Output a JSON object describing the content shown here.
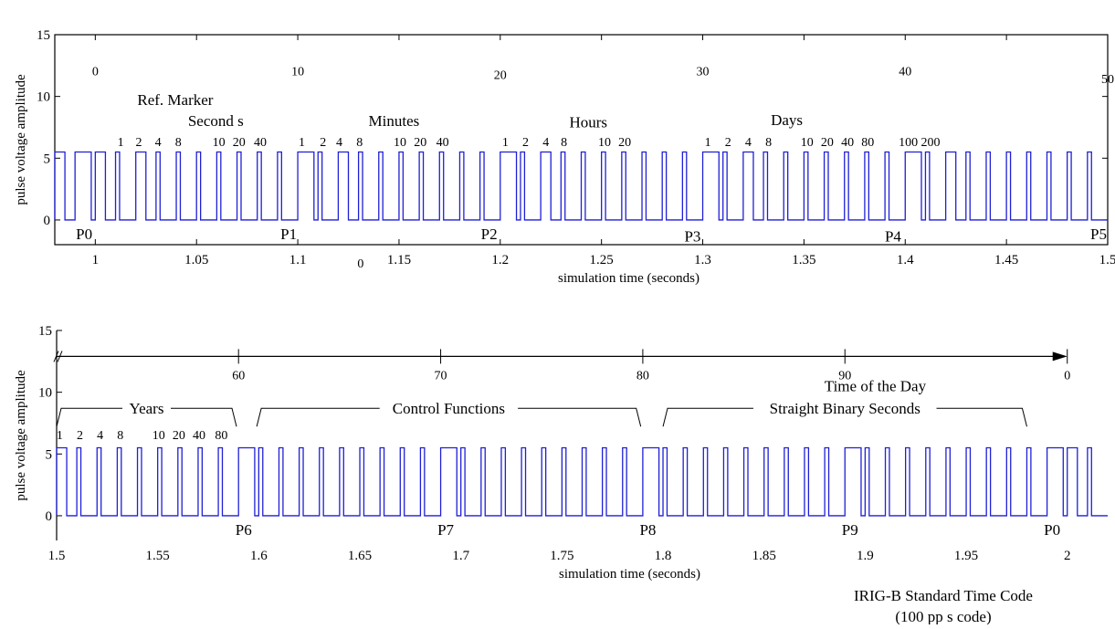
{
  "chart_data": [
    {
      "type": "line",
      "name": "top-panel",
      "xlabel": "simulation time (seconds)",
      "ylabel": "pulse voltage amplitude",
      "xlim": [
        0.98,
        1.5
      ],
      "ylim": [
        -2,
        15
      ],
      "xticks": [
        1,
        1.05,
        1.1,
        1.15,
        1.2,
        1.25,
        1.3,
        1.35,
        1.4,
        1.45,
        1.5
      ],
      "xtick_labels": [
        "1",
        "1.05",
        "1.1",
        "1.15",
        "1.2",
        "1.25",
        "1.3",
        "1.35",
        "1.4",
        "1.45",
        "1.5"
      ],
      "yticks": [
        0,
        5,
        10,
        15
      ],
      "ytick_labels": [
        "0",
        "5",
        "10",
        "15"
      ],
      "pulse_amplitude": 5.5,
      "pulse_start": 0.98,
      "pulse_period": 0.01,
      "pulse_widths": [
        0.005,
        0.008,
        0.005,
        0.002,
        0.005,
        0.002,
        0.002,
        0.002,
        0.002,
        0.002,
        0.002,
        0.002,
        0.008,
        0.002,
        0.005,
        0.002,
        0.002,
        0.002,
        0.002,
        0.002,
        0.002,
        0.002,
        0.008,
        0.002,
        0.005,
        0.002,
        0.002,
        0.002,
        0.002,
        0.002,
        0.002,
        0.002,
        0.008,
        0.002,
        0.005,
        0.002,
        0.002,
        0.002,
        0.002,
        0.002,
        0.002,
        0.002,
        0.008,
        0.002,
        0.005,
        0.002,
        0.002,
        0.002,
        0.002,
        0.002,
        0.002,
        0.002
      ],
      "second_marks": [
        {
          "label": "0",
          "x": 1.0,
          "y": 11.7
        },
        {
          "label": "10",
          "x": 1.1,
          "y": 11.7
        },
        {
          "label": "20",
          "x": 1.2,
          "y": 11.4
        },
        {
          "label": "30",
          "x": 1.3,
          "y": 11.7
        },
        {
          "label": "40",
          "x": 1.4,
          "y": 11.7
        },
        {
          "label": "50",
          "x": 1.5,
          "y": 11.1
        }
      ],
      "group_titles": [
        {
          "label": "Ref. Marker",
          "x": 1.0395,
          "y": 9.3
        },
        {
          "label": "Second s",
          "x": 1.0595,
          "y": 7.6
        },
        {
          "label": "Minutes",
          "x": 1.1475,
          "y": 7.6
        },
        {
          "label": "Hours",
          "x": 1.2435,
          "y": 7.5
        },
        {
          "label": "Days",
          "x": 1.3415,
          "y": 7.7
        }
      ],
      "weight_labels": [
        {
          "label": "1",
          "x": 1.0125
        },
        {
          "label": "2",
          "x": 1.0215
        },
        {
          "label": "4",
          "x": 1.031
        },
        {
          "label": "8",
          "x": 1.041
        },
        {
          "label": "10",
          "x": 1.061
        },
        {
          "label": "20",
          "x": 1.071
        },
        {
          "label": "40",
          "x": 1.0815
        },
        {
          "label": "1",
          "x": 1.102
        },
        {
          "label": "2",
          "x": 1.1125
        },
        {
          "label": "4",
          "x": 1.1205
        },
        {
          "label": "8",
          "x": 1.1305
        },
        {
          "label": "10",
          "x": 1.1505
        },
        {
          "label": "20",
          "x": 1.1605
        },
        {
          "label": "40",
          "x": 1.1715
        },
        {
          "label": "1",
          "x": 1.2025
        },
        {
          "label": "2",
          "x": 1.2125
        },
        {
          "label": "4",
          "x": 1.2225
        },
        {
          "label": "8",
          "x": 1.2315
        },
        {
          "label": "10",
          "x": 1.2515
        },
        {
          "label": "20",
          "x": 1.2615
        },
        {
          "label": "1",
          "x": 1.3025
        },
        {
          "label": "2",
          "x": 1.3125
        },
        {
          "label": "4",
          "x": 1.3225
        },
        {
          "label": "8",
          "x": 1.3325
        },
        {
          "label": "10",
          "x": 1.3515
        },
        {
          "label": "20",
          "x": 1.3615
        },
        {
          "label": "40",
          "x": 1.3715
        },
        {
          "label": "80",
          "x": 1.3815
        },
        {
          "label": "100",
          "x": 1.4015
        },
        {
          "label": "200",
          "x": 1.4125
        }
      ],
      "weight_label_y": 6.0,
      "position_markers": [
        {
          "label": "P0",
          "x": 0.9945,
          "y": -1.1
        },
        {
          "label": "P1",
          "x": 1.0955,
          "y": -1.1
        },
        {
          "label": "P2",
          "x": 1.1945,
          "y": -1.1
        },
        {
          "label": "P3",
          "x": 1.295,
          "y": -1.3
        },
        {
          "label": "P4",
          "x": 1.394,
          "y": -1.3
        },
        {
          "label": "P5",
          "x": 1.4955,
          "y": -1.1
        }
      ],
      "below_axis_label": {
        "label": "0",
        "x": 1.131
      }
    },
    {
      "type": "line",
      "name": "bottom-panel",
      "xlabel": "simulation time (seconds)",
      "ylabel": "pulse voltage amplitude",
      "xlim": [
        1.5,
        2.02
      ],
      "ylim": [
        -2,
        15
      ],
      "xticks": [
        1.5,
        1.55,
        1.6,
        1.65,
        1.7,
        1.75,
        1.8,
        1.85,
        1.9,
        1.95,
        2
      ],
      "xtick_labels": [
        "1.5",
        "1.55",
        "1.6",
        "1.65",
        "1.7",
        "1.75",
        "1.8",
        "1.85",
        "1.9",
        "1.95",
        "2"
      ],
      "yticks": [
        0,
        5,
        10,
        15
      ],
      "ytick_labels": [
        "0",
        "5",
        "10",
        "15"
      ],
      "pulse_amplitude": 5.5,
      "pulse_start": 1.5,
      "pulse_period": 0.01,
      "pulse_widths": [
        0.005,
        0.002,
        0.002,
        0.002,
        0.002,
        0.002,
        0.002,
        0.002,
        0.002,
        0.008,
        0.002,
        0.002,
        0.002,
        0.002,
        0.002,
        0.002,
        0.002,
        0.002,
        0.002,
        0.008,
        0.002,
        0.002,
        0.002,
        0.002,
        0.002,
        0.002,
        0.002,
        0.002,
        0.002,
        0.008,
        0.002,
        0.002,
        0.002,
        0.002,
        0.002,
        0.002,
        0.002,
        0.002,
        0.002,
        0.008,
        0.002,
        0.002,
        0.002,
        0.002,
        0.002,
        0.002,
        0.002,
        0.002,
        0.002,
        0.008,
        0.005,
        0.002
      ],
      "arrow_y": 12.9,
      "arrow_range": [
        1.5,
        2.0
      ],
      "second_marks": [
        {
          "label": "60",
          "x": 1.59
        },
        {
          "label": "70",
          "x": 1.69
        },
        {
          "label": "80",
          "x": 1.79
        },
        {
          "label": "90",
          "x": 1.89
        },
        {
          "label": "0",
          "x": 2.0
        }
      ],
      "group_brackets": [
        {
          "label": "Years",
          "x0": 1.5,
          "x1": 1.589,
          "y": 8.7
        },
        {
          "label": "Control Functions",
          "x0": 1.599,
          "x1": 1.789,
          "y": 8.7
        },
        {
          "label": "Straight Binary Seconds",
          "x0": 1.8,
          "x1": 1.98,
          "y": 8.7
        }
      ],
      "extra_titles": [
        {
          "label": "Time of the Day",
          "x": 1.905,
          "y": 10.1
        }
      ],
      "weight_labels": [
        {
          "label": "1",
          "x": 1.5015
        },
        {
          "label": "2",
          "x": 1.5115
        },
        {
          "label": "4",
          "x": 1.5215
        },
        {
          "label": "8",
          "x": 1.5315
        },
        {
          "label": "10",
          "x": 1.5505
        },
        {
          "label": "20",
          "x": 1.5605
        },
        {
          "label": "40",
          "x": 1.5705
        },
        {
          "label": "80",
          "x": 1.5815
        }
      ],
      "weight_label_y": 6.2,
      "position_markers": [
        {
          "label": "P6",
          "x": 1.5925,
          "y": -1.1
        },
        {
          "label": "P7",
          "x": 1.6925,
          "y": -1.1
        },
        {
          "label": "P8",
          "x": 1.7925,
          "y": -1.1
        },
        {
          "label": "P9",
          "x": 1.8925,
          "y": -1.1
        },
        {
          "label": "P0",
          "x": 1.9925,
          "y": -1.1
        }
      ]
    }
  ],
  "caption": {
    "line1": "IRIG-B Standard Time Code",
    "line2": "(100 pp s code)"
  },
  "colors": {
    "signal": "#1f1fd6",
    "axis": "#000000"
  }
}
